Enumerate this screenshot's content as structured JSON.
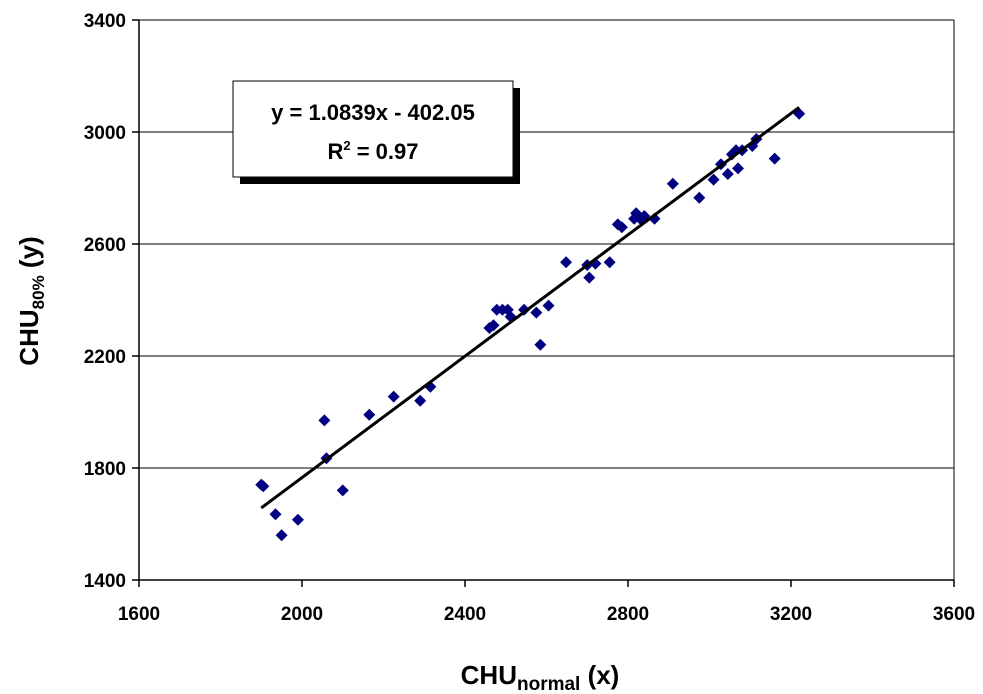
{
  "chart_data": {
    "type": "scatter",
    "x_axis": {
      "label_main": "CHU",
      "label_sub": "normal",
      "label_suffix": " (x)",
      "ticks": [
        "1600",
        "2000",
        "2400",
        "2800",
        "3200",
        "3600"
      ],
      "range": [
        1600,
        3600
      ]
    },
    "y_axis": {
      "label_main": "CHU",
      "label_sub": "80%",
      "label_suffix": " (y)",
      "ticks": [
        "1400",
        "1800",
        "2200",
        "2600",
        "3000",
        "3400"
      ],
      "range": [
        1400,
        3400
      ]
    },
    "grid": "horizontal",
    "marker_color": "#000080",
    "trendline": {
      "slope": 1.0839,
      "intercept": -402.05,
      "x_range": [
        1900,
        3220
      ],
      "color": "#000000"
    },
    "equation_box": {
      "line1": "y = 1.0839x - 402.05",
      "line2_prefix": "R",
      "line2_sup": "2",
      "line2_suffix": " = 0.97"
    },
    "points": [
      [
        1900,
        1740
      ],
      [
        1905,
        1735
      ],
      [
        1935,
        1635
      ],
      [
        1950,
        1560
      ],
      [
        1990,
        1615
      ],
      [
        2055,
        1970
      ],
      [
        2060,
        1835
      ],
      [
        2100,
        1720
      ],
      [
        2165,
        1990
      ],
      [
        2225,
        2055
      ],
      [
        2290,
        2040
      ],
      [
        2315,
        2090
      ],
      [
        2460,
        2300
      ],
      [
        2470,
        2310
      ],
      [
        2478,
        2365
      ],
      [
        2492,
        2365
      ],
      [
        2505,
        2365
      ],
      [
        2512,
        2340
      ],
      [
        2545,
        2365
      ],
      [
        2575,
        2355
      ],
      [
        2585,
        2240
      ],
      [
        2605,
        2380
      ],
      [
        2648,
        2535
      ],
      [
        2700,
        2525
      ],
      [
        2705,
        2480
      ],
      [
        2720,
        2530
      ],
      [
        2755,
        2535
      ],
      [
        2775,
        2670
      ],
      [
        2785,
        2660
      ],
      [
        2815,
        2690
      ],
      [
        2820,
        2710
      ],
      [
        2830,
        2690
      ],
      [
        2840,
        2700
      ],
      [
        2865,
        2690
      ],
      [
        2910,
        2815
      ],
      [
        2975,
        2765
      ],
      [
        3010,
        2830
      ],
      [
        3028,
        2885
      ],
      [
        3045,
        2850
      ],
      [
        3055,
        2920
      ],
      [
        3065,
        2935
      ],
      [
        3070,
        2870
      ],
      [
        3080,
        2935
      ],
      [
        3105,
        2950
      ],
      [
        3115,
        2975
      ],
      [
        3160,
        2905
      ],
      [
        3220,
        3065
      ]
    ]
  }
}
